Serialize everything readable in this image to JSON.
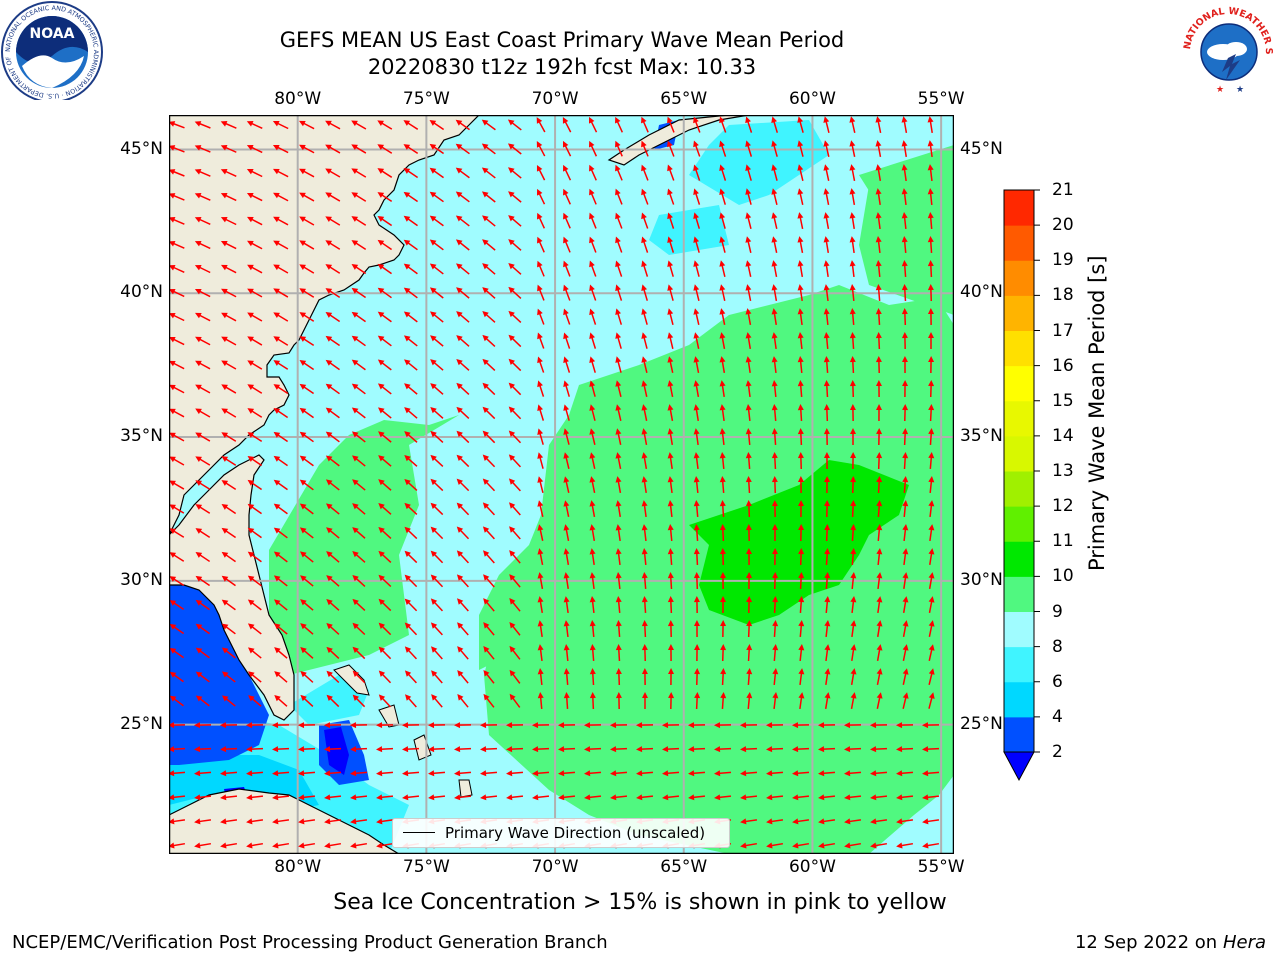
{
  "header": {
    "title_line1": "GEFS MEAN US East Coast Primary Wave Mean Period",
    "title_line2": "20220830 t12z 192h fcst   Max: 10.33"
  },
  "logos": {
    "left": "NOAA",
    "left_ring": "NATIONAL OCEANIC AND ATMOSPHERIC ADMINISTRATION · U.S. DEPARTMENT OF COMMERCE",
    "right": "NATIONAL WEATHER SERVICE"
  },
  "map": {
    "lon_labels": [
      "80°W",
      "75°W",
      "70°W",
      "65°W",
      "60°W",
      "55°W"
    ],
    "lat_labels": [
      "45°N",
      "40°N",
      "35°N",
      "30°N",
      "25°N"
    ],
    "lon_values": [
      -80,
      -75,
      -70,
      -65,
      -60,
      -55
    ],
    "lat_values": [
      45,
      40,
      35,
      30,
      25
    ],
    "extent": {
      "lon": [
        -85,
        -54.5
      ],
      "lat": [
        20.5,
        46.2
      ]
    },
    "legend": "Primary Wave Direction (unscaled)",
    "vector_color": "#ff0000",
    "land_color": "#efecdc"
  },
  "colorbar": {
    "label": "Primary Wave Mean Period [s]",
    "ticks": [
      "2",
      "4",
      "6",
      "8",
      "9",
      "10",
      "11",
      "12",
      "13",
      "14",
      "15",
      "16",
      "17",
      "18",
      "19",
      "20",
      "21"
    ],
    "colors": [
      "#0050ff",
      "#00d8ff",
      "#40f4ff",
      "#a0fcff",
      "#50f880",
      "#00e800",
      "#60f000",
      "#a0f000",
      "#d8f800",
      "#e8f800",
      "#ffff00",
      "#ffe000",
      "#ffb400",
      "#ff8c00",
      "#ff5a00",
      "#ff2800"
    ],
    "under_color": "#0000ff"
  },
  "footer": {
    "note": "Sea Ice Concentration > 15% is shown in pink to yellow",
    "credit": "NCEP/EMC/Verification Post Processing Product Generation Branch",
    "date": "12 Sep 2022 on",
    "machine": "Hera"
  }
}
